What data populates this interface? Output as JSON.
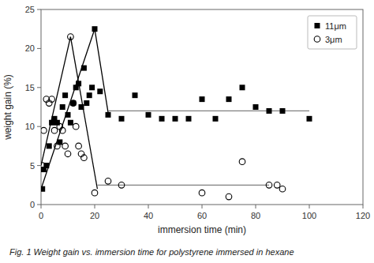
{
  "chart_data": {
    "type": "scatter",
    "title": "Fig. 1  Weight gain vs. immersion time for polystyrene immersed in hexane",
    "xlabel": "immersion time (min)",
    "ylabel": "weight gain (%)",
    "xlim": [
      0,
      120
    ],
    "ylim": [
      0,
      25
    ],
    "xticks": [
      0,
      20,
      40,
      60,
      80,
      100,
      120
    ],
    "yticks": [
      0,
      5,
      10,
      15,
      20,
      25
    ],
    "grid": false,
    "legend": "upper-right",
    "series": [
      {
        "name": "11μm",
        "type": "scatter",
        "marker": "square",
        "color": "#000000",
        "x": [
          0.5,
          1,
          2,
          3,
          4,
          5,
          6,
          7,
          8,
          9,
          10,
          11,
          12,
          13,
          14,
          15,
          16,
          17,
          18,
          19,
          20,
          22,
          25,
          30,
          35,
          40,
          45,
          50,
          55,
          60,
          65,
          70,
          75,
          80,
          85,
          90,
          100
        ],
        "values": [
          2.0,
          4.5,
          5.0,
          7.5,
          10.5,
          11.0,
          10.5,
          8.0,
          12.5,
          14.0,
          11.5,
          10.5,
          13.0,
          15.0,
          15.5,
          12.5,
          17.5,
          13.0,
          14.0,
          15.0,
          22.5,
          14.5,
          11.5,
          11.0,
          14.0,
          11.5,
          11.0,
          11.0,
          11.0,
          13.5,
          11.0,
          13.5,
          15.0,
          12.5,
          12.0,
          12.0,
          11.0
        ]
      },
      {
        "name": "3μm",
        "type": "scatter",
        "marker": "open-circle",
        "color": "#000000",
        "x": [
          0.5,
          1,
          2,
          3,
          4,
          5,
          6,
          7,
          8,
          9,
          10,
          11,
          12,
          13,
          14,
          15,
          16,
          20,
          25,
          30,
          60,
          70,
          75,
          85,
          88,
          90
        ],
        "values": [
          5.0,
          9.5,
          13.5,
          13.0,
          13.5,
          9.5,
          7.5,
          10.0,
          9.5,
          7.5,
          6.5,
          21.5,
          13.0,
          10.0,
          7.5,
          6.5,
          6.0,
          1.5,
          3.0,
          2.5,
          1.5,
          1.0,
          5.5,
          2.5,
          2.5,
          2.0
        ]
      },
      {
        "type": "line",
        "color": "#000000",
        "x": [
          0,
          20
        ],
        "values": [
          2.0,
          22.5
        ]
      },
      {
        "type": "line",
        "color": "#000000",
        "x": [
          20,
          25
        ],
        "values": [
          22.5,
          11.8
        ]
      },
      {
        "type": "line",
        "color": "#808080",
        "x": [
          25,
          100
        ],
        "values": [
          12.0,
          12.0
        ]
      },
      {
        "type": "line",
        "color": "#000000",
        "x": [
          0,
          11
        ],
        "values": [
          5.0,
          21.5
        ]
      },
      {
        "type": "line",
        "color": "#000000",
        "x": [
          11,
          21
        ],
        "values": [
          21.5,
          2.0
        ]
      },
      {
        "type": "line",
        "color": "#808080",
        "x": [
          21,
          85
        ],
        "values": [
          2.5,
          2.5
        ]
      }
    ]
  }
}
